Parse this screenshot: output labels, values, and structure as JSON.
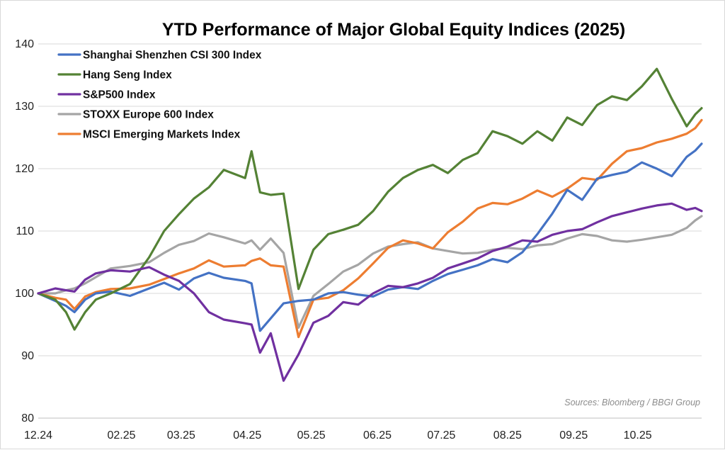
{
  "chart_data": {
    "type": "line",
    "title": "YTD Performance of Major Global Equity Indices (2025)",
    "source": "Sources: Bloomberg / BBGI Group",
    "xlabel": "",
    "ylabel": "",
    "x_tick_labels": [
      "12.24",
      "02.25",
      "03.25",
      "04.25",
      "05.25",
      "06.25",
      "07.25",
      "08.25",
      "09.25",
      "10.25"
    ],
    "y_tick_labels": [
      "80",
      "90",
      "100",
      "110",
      "120",
      "130",
      "140"
    ],
    "ylim": [
      80,
      140
    ],
    "grid": "horizontal",
    "legend_position": "top-left",
    "series": [
      {
        "name": "Shanghai Shenzhen CSI 300 Index",
        "color": "#4472c4",
        "values": [
          [
            "12.24",
            100
          ],
          [
            "01.01",
            98.8
          ],
          [
            "01.06",
            98.0
          ],
          [
            "01.10",
            97.0
          ],
          [
            "01.15",
            99.0
          ],
          [
            "01.20",
            100.0
          ],
          [
            "01.27",
            100.3
          ],
          [
            "02.05",
            99.6
          ],
          [
            "02.14",
            100.8
          ],
          [
            "02.21",
            101.7
          ],
          [
            "02.28",
            100.6
          ],
          [
            "03.07",
            102.4
          ],
          [
            "03.14",
            103.3
          ],
          [
            "03.21",
            102.5
          ],
          [
            "03.31",
            102.0
          ],
          [
            "04.03",
            101.6
          ],
          [
            "04.07",
            94.0
          ],
          [
            "04.12",
            96.0
          ],
          [
            "04.18",
            98.4
          ],
          [
            "04.25",
            98.8
          ],
          [
            "05.02",
            99.0
          ],
          [
            "05.09",
            100.0
          ],
          [
            "05.16",
            100.2
          ],
          [
            "05.23",
            99.8
          ],
          [
            "05.30",
            99.5
          ],
          [
            "06.06",
            100.6
          ],
          [
            "06.13",
            101.0
          ],
          [
            "06.20",
            100.7
          ],
          [
            "06.27",
            102.0
          ],
          [
            "07.04",
            103.1
          ],
          [
            "07.11",
            103.8
          ],
          [
            "07.18",
            104.5
          ],
          [
            "07.25",
            105.5
          ],
          [
            "08.01",
            105.0
          ],
          [
            "08.08",
            106.6
          ],
          [
            "08.15",
            109.5
          ],
          [
            "08.22",
            112.8
          ],
          [
            "08.29",
            116.6
          ],
          [
            "09.05",
            115.0
          ],
          [
            "09.12",
            118.4
          ],
          [
            "09.19",
            119.0
          ],
          [
            "09.26",
            119.5
          ],
          [
            "10.03",
            121.0
          ],
          [
            "10.10",
            120.0
          ],
          [
            "10.17",
            118.8
          ],
          [
            "10.24",
            121.9
          ],
          [
            "10.28",
            122.9
          ],
          [
            "10.31",
            124.0
          ]
        ]
      },
      {
        "name": "Hang Seng Index",
        "color": "#548235",
        "values": [
          [
            "12.24",
            100
          ],
          [
            "01.01",
            99.0
          ],
          [
            "01.06",
            97.0
          ],
          [
            "01.10",
            94.2
          ],
          [
            "01.15",
            97.0
          ],
          [
            "01.20",
            99.0
          ],
          [
            "01.27",
            100.0
          ],
          [
            "02.05",
            101.5
          ],
          [
            "02.14",
            105.8
          ],
          [
            "02.21",
            110.0
          ],
          [
            "02.28",
            112.7
          ],
          [
            "03.07",
            115.2
          ],
          [
            "03.14",
            117.0
          ],
          [
            "03.21",
            119.8
          ],
          [
            "03.31",
            118.5
          ],
          [
            "04.03",
            122.8
          ],
          [
            "04.07",
            116.2
          ],
          [
            "04.12",
            115.8
          ],
          [
            "04.18",
            116.0
          ],
          [
            "04.25",
            100.7
          ],
          [
            "05.02",
            107.0
          ],
          [
            "05.09",
            109.5
          ],
          [
            "05.16",
            110.2
          ],
          [
            "05.23",
            111.0
          ],
          [
            "05.30",
            113.2
          ],
          [
            "06.06",
            116.3
          ],
          [
            "06.13",
            118.5
          ],
          [
            "06.20",
            119.8
          ],
          [
            "06.27",
            120.6
          ],
          [
            "07.04",
            119.3
          ],
          [
            "07.11",
            121.4
          ],
          [
            "07.18",
            122.5
          ],
          [
            "07.25",
            126.0
          ],
          [
            "08.01",
            125.2
          ],
          [
            "08.08",
            124.0
          ],
          [
            "08.15",
            126.0
          ],
          [
            "08.22",
            124.5
          ],
          [
            "08.29",
            128.2
          ],
          [
            "09.05",
            127.0
          ],
          [
            "09.12",
            130.2
          ],
          [
            "09.19",
            131.6
          ],
          [
            "09.26",
            131.0
          ],
          [
            "10.03",
            133.2
          ],
          [
            "10.10",
            136.0
          ],
          [
            "10.17",
            131.2
          ],
          [
            "10.24",
            126.8
          ],
          [
            "10.28",
            128.7
          ],
          [
            "10.31",
            129.7
          ]
        ]
      },
      {
        "name": "S&P500 Index",
        "color": "#7030a0",
        "values": [
          [
            "12.24",
            100
          ],
          [
            "01.01",
            100.8
          ],
          [
            "01.06",
            100.5
          ],
          [
            "01.10",
            100.3
          ],
          [
            "01.15",
            102.2
          ],
          [
            "01.20",
            103.2
          ],
          [
            "01.27",
            103.7
          ],
          [
            "02.05",
            103.5
          ],
          [
            "02.14",
            104.2
          ],
          [
            "02.21",
            103.0
          ],
          [
            "02.28",
            102.0
          ],
          [
            "03.07",
            100.0
          ],
          [
            "03.14",
            97.0
          ],
          [
            "03.21",
            95.8
          ],
          [
            "03.31",
            95.2
          ],
          [
            "04.03",
            95.0
          ],
          [
            "04.07",
            90.5
          ],
          [
            "04.12",
            93.6
          ],
          [
            "04.18",
            86.0
          ],
          [
            "04.25",
            90.2
          ],
          [
            "05.02",
            95.3
          ],
          [
            "05.09",
            96.4
          ],
          [
            "05.16",
            98.6
          ],
          [
            "05.23",
            98.2
          ],
          [
            "05.30",
            100.0
          ],
          [
            "06.06",
            101.2
          ],
          [
            "06.13",
            101.0
          ],
          [
            "06.20",
            101.6
          ],
          [
            "06.27",
            102.5
          ],
          [
            "07.04",
            104.0
          ],
          [
            "07.11",
            104.8
          ],
          [
            "07.18",
            105.6
          ],
          [
            "07.25",
            106.8
          ],
          [
            "08.01",
            107.5
          ],
          [
            "08.08",
            108.5
          ],
          [
            "08.15",
            108.3
          ],
          [
            "08.22",
            109.4
          ],
          [
            "08.29",
            110.0
          ],
          [
            "09.05",
            110.3
          ],
          [
            "09.12",
            111.4
          ],
          [
            "09.19",
            112.4
          ],
          [
            "09.26",
            113.0
          ],
          [
            "10.03",
            113.6
          ],
          [
            "10.10",
            114.1
          ],
          [
            "10.17",
            114.4
          ],
          [
            "10.24",
            113.4
          ],
          [
            "10.28",
            113.7
          ],
          [
            "10.31",
            113.2
          ]
        ]
      },
      {
        "name": "STOXX Europe 600 Index",
        "color": "#a5a5a5",
        "values": [
          [
            "12.24",
            100
          ],
          [
            "01.01",
            100.0
          ],
          [
            "01.06",
            100.5
          ],
          [
            "01.10",
            100.8
          ],
          [
            "01.15",
            101.6
          ],
          [
            "01.20",
            102.6
          ],
          [
            "01.27",
            104.0
          ],
          [
            "02.05",
            104.4
          ],
          [
            "02.14",
            105.0
          ],
          [
            "02.21",
            106.5
          ],
          [
            "02.28",
            107.8
          ],
          [
            "03.07",
            108.4
          ],
          [
            "03.14",
            109.6
          ],
          [
            "03.21",
            109.0
          ],
          [
            "03.31",
            108.0
          ],
          [
            "04.03",
            108.5
          ],
          [
            "04.07",
            107.0
          ],
          [
            "04.12",
            108.8
          ],
          [
            "04.18",
            106.5
          ],
          [
            "04.25",
            94.5
          ],
          [
            "05.02",
            99.6
          ],
          [
            "05.09",
            101.5
          ],
          [
            "05.16",
            103.5
          ],
          [
            "05.23",
            104.6
          ],
          [
            "05.30",
            106.4
          ],
          [
            "06.06",
            107.5
          ],
          [
            "06.13",
            107.9
          ],
          [
            "06.20",
            108.2
          ],
          [
            "06.27",
            107.2
          ],
          [
            "07.04",
            106.8
          ],
          [
            "07.11",
            106.4
          ],
          [
            "07.18",
            106.5
          ],
          [
            "07.25",
            107.0
          ],
          [
            "08.01",
            107.3
          ],
          [
            "08.08",
            107.1
          ],
          [
            "08.15",
            107.7
          ],
          [
            "08.22",
            107.9
          ],
          [
            "08.29",
            108.8
          ],
          [
            "09.05",
            109.5
          ],
          [
            "09.12",
            109.2
          ],
          [
            "09.19",
            108.5
          ],
          [
            "09.26",
            108.3
          ],
          [
            "10.03",
            108.6
          ],
          [
            "10.10",
            109.0
          ],
          [
            "10.17",
            109.4
          ],
          [
            "10.24",
            110.5
          ],
          [
            "10.28",
            111.7
          ],
          [
            "10.31",
            112.4
          ]
        ]
      },
      {
        "name": "MSCI Emerging Markets Index",
        "color": "#ed7d31",
        "values": [
          [
            "12.24",
            100
          ],
          [
            "01.01",
            99.3
          ],
          [
            "01.06",
            99.0
          ],
          [
            "01.10",
            97.5
          ],
          [
            "01.15",
            99.5
          ],
          [
            "01.20",
            100.2
          ],
          [
            "01.27",
            100.7
          ],
          [
            "02.05",
            100.8
          ],
          [
            "02.14",
            101.4
          ],
          [
            "02.21",
            102.3
          ],
          [
            "02.28",
            103.2
          ],
          [
            "03.07",
            104.0
          ],
          [
            "03.14",
            105.3
          ],
          [
            "03.21",
            104.3
          ],
          [
            "03.31",
            104.5
          ],
          [
            "04.03",
            105.2
          ],
          [
            "04.07",
            105.6
          ],
          [
            "04.12",
            104.5
          ],
          [
            "04.18",
            104.3
          ],
          [
            "04.25",
            93.0
          ],
          [
            "05.02",
            99.0
          ],
          [
            "05.09",
            99.3
          ],
          [
            "05.16",
            100.5
          ],
          [
            "05.23",
            102.4
          ],
          [
            "05.30",
            104.8
          ],
          [
            "06.06",
            107.3
          ],
          [
            "06.13",
            108.5
          ],
          [
            "06.20",
            108.0
          ],
          [
            "06.27",
            107.2
          ],
          [
            "07.04",
            109.8
          ],
          [
            "07.11",
            111.5
          ],
          [
            "07.18",
            113.6
          ],
          [
            "07.25",
            114.5
          ],
          [
            "08.01",
            114.3
          ],
          [
            "08.08",
            115.2
          ],
          [
            "08.15",
            116.5
          ],
          [
            "08.22",
            115.5
          ],
          [
            "08.29",
            116.8
          ],
          [
            "09.05",
            118.5
          ],
          [
            "09.12",
            118.2
          ],
          [
            "09.19",
            120.8
          ],
          [
            "09.26",
            122.8
          ],
          [
            "10.03",
            123.3
          ],
          [
            "10.10",
            124.2
          ],
          [
            "10.17",
            124.8
          ],
          [
            "10.24",
            125.6
          ],
          [
            "10.28",
            126.5
          ],
          [
            "10.31",
            127.8
          ]
        ]
      }
    ]
  }
}
